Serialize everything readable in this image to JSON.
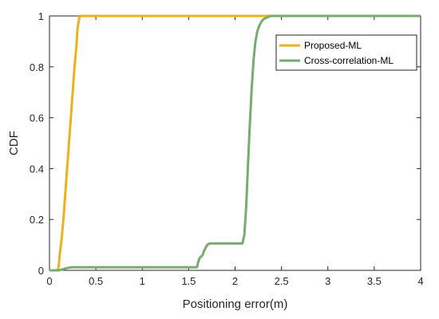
{
  "chart_data": {
    "type": "line",
    "xlabel": "Positioning error(m)",
    "ylabel": "CDF",
    "xlim": [
      0,
      4
    ],
    "ylim": [
      0,
      1
    ],
    "xticks": [
      0,
      0.5,
      1,
      1.5,
      2,
      2.5,
      3,
      3.5,
      4
    ],
    "xtick_labels": [
      "0",
      "0.5",
      "1",
      "1.5",
      "2",
      "2.5",
      "3",
      "3.5",
      "4"
    ],
    "yticks": [
      0,
      0.2,
      0.4,
      0.6,
      0.8,
      1
    ],
    "ytick_labels": [
      "0",
      "0.2",
      "0.4",
      "0.6",
      "0.8",
      "1"
    ],
    "grid": false,
    "legend_position": "top-right",
    "series": [
      {
        "name": "Proposed-ML",
        "color": "#EDB120",
        "x": [
          0,
          0.09,
          0.1,
          0.11,
          0.13,
          0.15,
          0.17,
          0.19,
          0.21,
          0.23,
          0.25,
          0.27,
          0.29,
          0.3,
          0.31,
          0.32,
          0.33,
          4
        ],
        "y": [
          0,
          0,
          0.02,
          0.06,
          0.12,
          0.2,
          0.3,
          0.4,
          0.5,
          0.6,
          0.7,
          0.8,
          0.88,
          0.94,
          0.97,
          0.99,
          1,
          1
        ]
      },
      {
        "name": "Cross-correlation-ML",
        "color": "#77AC6E",
        "x": [
          0,
          0.1,
          0.15,
          0.2,
          0.25,
          1.59,
          1.6,
          1.62,
          1.65,
          1.67,
          1.7,
          1.72,
          1.75,
          2.08,
          2.1,
          2.12,
          2.14,
          2.16,
          2.18,
          2.2,
          2.22,
          2.24,
          2.26,
          2.28,
          2.3,
          2.32,
          2.35,
          2.38,
          2.4,
          4
        ],
        "y": [
          0,
          0,
          0.005,
          0.01,
          0.012,
          0.012,
          0.03,
          0.05,
          0.06,
          0.08,
          0.1,
          0.105,
          0.106,
          0.106,
          0.14,
          0.25,
          0.42,
          0.58,
          0.72,
          0.83,
          0.9,
          0.94,
          0.96,
          0.975,
          0.985,
          0.99,
          0.995,
          1,
          1,
          1
        ]
      }
    ]
  }
}
